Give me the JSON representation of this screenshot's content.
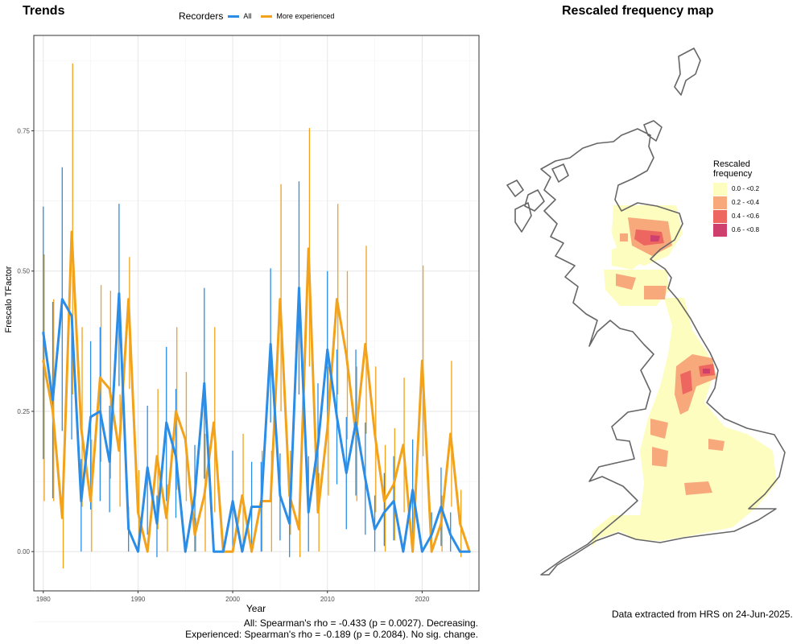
{
  "panel_titles": {
    "trends": "Trends",
    "map": "Rescaled frequency map"
  },
  "legend": {
    "title": "Recorders",
    "items": [
      {
        "label": "All",
        "color": "#2b8de6"
      },
      {
        "label": "More experienced",
        "color": "#f2a21b"
      }
    ]
  },
  "chart_data": {
    "type": "line",
    "xlabel": "Year",
    "ylabel": "Frescalo TFactor",
    "xlim": [
      1979,
      2026
    ],
    "ylim": [
      -0.07,
      0.92
    ],
    "xticks": [
      1980,
      1990,
      2000,
      2010,
      2020
    ],
    "yticks": [
      "0.00",
      "0.25",
      "0.50",
      "0.75"
    ],
    "grid": true,
    "legend_position": "top",
    "error_bars": true,
    "series": [
      {
        "name": "All",
        "color": "#2b8de6",
        "points": [
          [
            1980,
            0.39,
            0.165,
            0.615
          ],
          [
            1981,
            0.27,
            0.095,
            0.445
          ],
          [
            1982,
            0.45,
            0.215,
            0.685
          ],
          [
            1983,
            0.42,
            0.2,
            0.42
          ],
          [
            1984,
            0.09,
            0.0,
            0.165
          ],
          [
            1985,
            0.24,
            0.075,
            0.375
          ],
          [
            1986,
            0.25,
            0.09,
            0.4
          ],
          [
            1987,
            0.16,
            0.07,
            0.26
          ],
          [
            1988,
            0.46,
            0.295,
            0.62
          ],
          [
            1989,
            0.04,
            0.0,
            0.08
          ],
          [
            1990,
            0.0,
            0.0,
            0.0
          ],
          [
            1991,
            0.15,
            0.03,
            0.26
          ],
          [
            1992,
            0.05,
            -0.01,
            0.1
          ],
          [
            1993,
            0.23,
            0.09,
            0.365
          ],
          [
            1994,
            0.17,
            0.06,
            0.29
          ],
          [
            1995,
            0.0,
            0.0,
            0.0
          ],
          [
            1996,
            0.1,
            0.0,
            0.19
          ],
          [
            1997,
            0.3,
            0.13,
            0.47
          ],
          [
            1998,
            0.0,
            0.0,
            0.0
          ],
          [
            1999,
            0.0,
            0.0,
            0.0
          ],
          [
            2000,
            0.09,
            0.0,
            0.18
          ],
          [
            2001,
            0.0,
            0.0,
            0.0
          ],
          [
            2002,
            0.08,
            0.0,
            0.16
          ],
          [
            2003,
            0.08,
            0.0,
            0.16
          ],
          [
            2004,
            0.37,
            0.23,
            0.505
          ],
          [
            2005,
            0.1,
            0.02,
            0.175
          ],
          [
            2006,
            0.05,
            -0.01,
            0.11
          ],
          [
            2007,
            0.47,
            0.28,
            0.66
          ],
          [
            2008,
            0.07,
            0.0,
            0.17
          ],
          [
            2009,
            0.19,
            0.08,
            0.3
          ],
          [
            2010,
            0.36,
            0.22,
            0.5
          ],
          [
            2011,
            0.24,
            0.12,
            0.36
          ],
          [
            2012,
            0.14,
            0.04,
            0.24
          ],
          [
            2013,
            0.23,
            0.1,
            0.36
          ],
          [
            2014,
            0.13,
            0.03,
            0.23
          ],
          [
            2015,
            0.04,
            0.0,
            0.1
          ],
          [
            2016,
            0.07,
            0.01,
            0.14
          ],
          [
            2017,
            0.09,
            0.02,
            0.17
          ],
          [
            2018,
            0.0,
            0.0,
            0.0
          ],
          [
            2019,
            0.11,
            0.02,
            0.2
          ],
          [
            2020,
            0.0,
            0.0,
            0.0
          ],
          [
            2021,
            0.03,
            0.0,
            0.07
          ],
          [
            2022,
            0.08,
            0.01,
            0.15
          ],
          [
            2023,
            0.03,
            0.0,
            0.07
          ],
          [
            2024,
            0.0,
            0.0,
            0.0
          ],
          [
            2025,
            0.0,
            0.0,
            0.0
          ]
        ]
      },
      {
        "name": "More experienced",
        "color": "#f2a21b",
        "points": [
          [
            1980,
            0.34,
            0.09,
            0.53
          ],
          [
            1981,
            0.25,
            0.09,
            0.45
          ],
          [
            1982,
            0.06,
            -0.03,
            0.145
          ],
          [
            1983,
            0.57,
            0.28,
            0.87
          ],
          [
            1984,
            0.22,
            0.08,
            0.4
          ],
          [
            1985,
            0.09,
            0.0,
            0.2
          ],
          [
            1986,
            0.31,
            0.16,
            0.475
          ],
          [
            1987,
            0.29,
            0.13,
            0.465
          ],
          [
            1988,
            0.18,
            0.08,
            0.28
          ],
          [
            1989,
            0.45,
            0.29,
            0.525
          ],
          [
            1990,
            0.07,
            0.0,
            0.145
          ],
          [
            1991,
            0.0,
            0.0,
            0.0
          ],
          [
            1992,
            0.17,
            0.04,
            0.29
          ],
          [
            1993,
            0.06,
            0.0,
            0.12
          ],
          [
            1994,
            0.25,
            0.11,
            0.4
          ],
          [
            1995,
            0.2,
            0.09,
            0.32
          ],
          [
            1996,
            0.03,
            0.0,
            0.06
          ],
          [
            1997,
            0.1,
            0.0,
            0.21
          ],
          [
            1998,
            0.23,
            0.07,
            0.4
          ],
          [
            1999,
            0.0,
            0.0,
            0.0
          ],
          [
            2000,
            0.0,
            0.0,
            0.0
          ],
          [
            2001,
            0.1,
            0.0,
            0.21
          ],
          [
            2002,
            0.0,
            0.0,
            0.0
          ],
          [
            2003,
            0.09,
            0.0,
            0.18
          ],
          [
            2004,
            0.09,
            0.0,
            0.18
          ],
          [
            2005,
            0.45,
            0.25,
            0.655
          ],
          [
            2006,
            0.1,
            0.03,
            0.18
          ],
          [
            2007,
            0.04,
            -0.01,
            0.11
          ],
          [
            2008,
            0.54,
            0.33,
            0.755
          ],
          [
            2009,
            0.07,
            0.0,
            0.14
          ],
          [
            2010,
            0.22,
            0.1,
            0.33
          ],
          [
            2011,
            0.45,
            0.28,
            0.62
          ],
          [
            2012,
            0.35,
            0.2,
            0.5
          ],
          [
            2013,
            0.21,
            0.09,
            0.33
          ],
          [
            2014,
            0.37,
            0.21,
            0.545
          ],
          [
            2015,
            0.21,
            0.07,
            0.33
          ],
          [
            2016,
            0.09,
            0.0,
            0.19
          ],
          [
            2017,
            0.12,
            0.02,
            0.22
          ],
          [
            2018,
            0.19,
            0.07,
            0.31
          ],
          [
            2019,
            0.0,
            0.0,
            0.0
          ],
          [
            2020,
            0.34,
            0.17,
            0.51
          ],
          [
            2021,
            0.0,
            0.0,
            0.0
          ],
          [
            2022,
            0.05,
            0.0,
            0.1
          ],
          [
            2023,
            0.21,
            0.08,
            0.34
          ],
          [
            2024,
            0.05,
            -0.01,
            0.11
          ],
          [
            2025,
            0.0,
            0.0,
            0.0
          ]
        ]
      }
    ]
  },
  "stats": {
    "all": "All: Spearman's rho = -0.433 (p = 0.0027). Decreasing.",
    "experienced": "Experienced: Spearman's rho = -0.189 (p = 0.2084). No sig. change."
  },
  "map_legend": {
    "title_line1": "Rescaled",
    "title_line2": "frequency",
    "classes": [
      {
        "label": "0.0 - <0.2",
        "color": "#fdfdc0"
      },
      {
        "label": "0.2 - <0.4",
        "color": "#f8a97c"
      },
      {
        "label": "0.4 - <0.6",
        "color": "#ee6660"
      },
      {
        "label": "0.6 - <0.8",
        "color": "#cf3f6e"
      }
    ]
  },
  "map": {
    "outline_color": "#666666",
    "background_color": "#ffffff"
  },
  "extract_note": "Data extracted from HRS on 24-Jun-2025."
}
